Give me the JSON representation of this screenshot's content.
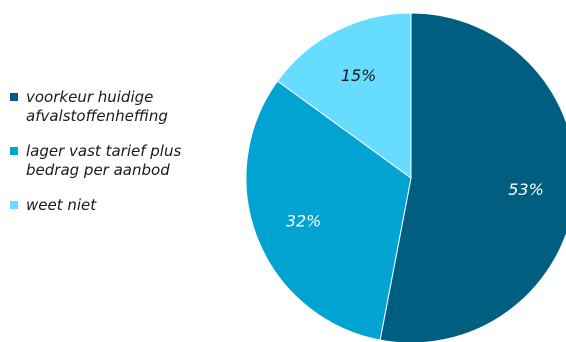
{
  "chart_data": {
    "type": "pie",
    "title": "",
    "legend_placement": "left",
    "start_angle_deg": 0,
    "direction": "clockwise",
    "slices": [
      {
        "label_lines": [
          "voorkeur huidige",
          "afvalstoffenheffing"
        ],
        "value": 53,
        "display": "53%",
        "color": "#005f80",
        "label_color": "#ffffff"
      },
      {
        "label_lines": [
          "lager vast tarief plus",
          "bedrag per aanbod"
        ],
        "value": 32,
        "display": "32%",
        "color": "#00a3d2",
        "label_color": "#ffffff"
      },
      {
        "label_lines": [
          "weet niet"
        ],
        "value": 15,
        "display": "15%",
        "color": "#66dcff",
        "label_color": "#1a1a1a"
      }
    ]
  }
}
